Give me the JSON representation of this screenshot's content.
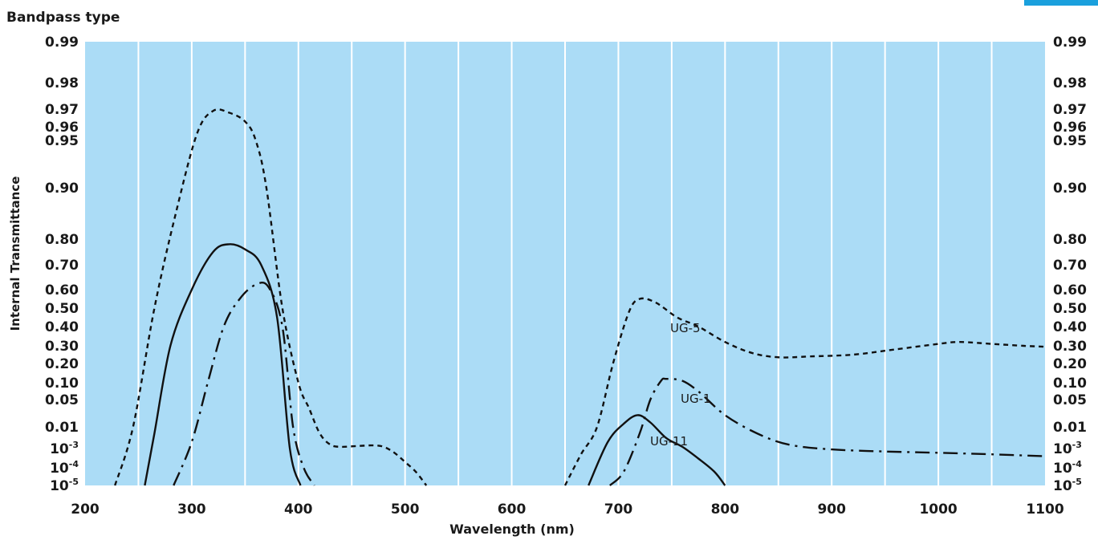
{
  "chart_data": {
    "type": "line",
    "title": "Bandpass type",
    "xlabel": "Wavelength (nm)",
    "ylabel": "Internal Transmittance",
    "xlim": [
      200,
      1100
    ],
    "x_ticks": [
      "200",
      "300",
      "400",
      "500",
      "600",
      "700",
      "800",
      "900",
      "1000",
      "1100"
    ],
    "y_scale": "non-linear (custom transmittance scale)",
    "y_ticks": [
      {
        "value": 0.99,
        "label": "0.99"
      },
      {
        "value": 0.98,
        "label": "0.98"
      },
      {
        "value": 0.97,
        "label": "0.97"
      },
      {
        "value": 0.96,
        "label": "0.96"
      },
      {
        "value": 0.95,
        "label": "0.95"
      },
      {
        "value": 0.9,
        "label": "0.90"
      },
      {
        "value": 0.8,
        "label": "0.80"
      },
      {
        "value": 0.7,
        "label": "0.70"
      },
      {
        "value": 0.6,
        "label": "0.60"
      },
      {
        "value": 0.5,
        "label": "0.50"
      },
      {
        "value": 0.4,
        "label": "0.40"
      },
      {
        "value": 0.3,
        "label": "0.30"
      },
      {
        "value": 0.2,
        "label": "0.20"
      },
      {
        "value": 0.1,
        "label": "0.10"
      },
      {
        "value": 0.05,
        "label": "0.05"
      },
      {
        "value": 0.01,
        "label": "0.01"
      },
      {
        "value": 0.001,
        "base": "10",
        "exp": "-3"
      },
      {
        "value": 0.0001,
        "base": "10",
        "exp": "-4"
      },
      {
        "value": 1e-05,
        "base": "10",
        "exp": "-5"
      }
    ],
    "grid": true,
    "plot_background": "#abdcf6",
    "series": [
      {
        "name": "UG-5",
        "style": "dashed",
        "x": [
          228,
          245,
          265,
          285,
          305,
          320,
          335,
          350,
          360,
          370,
          385,
          400,
          410,
          420,
          430,
          440,
          455,
          470,
          480,
          490,
          500,
          510,
          520,
          650,
          665,
          680,
          695,
          710,
          720,
          735,
          755,
          775,
          800,
          825,
          850,
          880,
          920,
          960,
          1000,
          1020,
          1050,
          1080,
          1100
        ],
        "y": [
          1e-05,
          0.01,
          0.5,
          0.85,
          0.955,
          0.969,
          0.968,
          0.963,
          0.95,
          0.9,
          0.5,
          0.1,
          0.03,
          0.005,
          0.0015,
          0.0012,
          0.0013,
          0.0014,
          0.0012,
          0.0006,
          0.0002,
          6e-05,
          1e-05,
          1e-05,
          0.0005,
          0.01,
          0.2,
          0.48,
          0.55,
          0.53,
          0.45,
          0.4,
          0.32,
          0.26,
          0.235,
          0.24,
          0.25,
          0.28,
          0.31,
          0.32,
          0.31,
          0.3,
          0.295
        ]
      },
      {
        "name": "UG-11",
        "style": "solid",
        "x": [
          256,
          265,
          280,
          300,
          320,
          335,
          350,
          365,
          380,
          392,
          402,
          672,
          690,
          705,
          718,
          730,
          745,
          760,
          775,
          790,
          800
        ],
        "y": [
          1e-05,
          0.005,
          0.3,
          0.6,
          0.75,
          0.78,
          0.76,
          0.7,
          0.45,
          0.001,
          1e-05,
          1e-05,
          0.002,
          0.012,
          0.02,
          0.013,
          0.003,
          0.0012,
          0.0003,
          6e-05,
          1e-05
        ]
      },
      {
        "name": "UG-1",
        "style": "dash-dot",
        "x": [
          283,
          300,
          315,
          330,
          345,
          360,
          372,
          385,
          395,
          405,
          415,
          692,
          705,
          720,
          730,
          740,
          745,
          760,
          775,
          800,
          830,
          860,
          900,
          950,
          1000,
          1050,
          1100
        ],
        "y": [
          1e-05,
          0.002,
          0.1,
          0.4,
          0.55,
          0.62,
          0.61,
          0.4,
          0.01,
          0.0001,
          1e-05,
          1e-05,
          6e-05,
          0.005,
          0.05,
          0.11,
          0.12,
          0.11,
          0.07,
          0.02,
          0.005,
          0.0015,
          0.0009,
          0.0007,
          0.0006,
          0.0005,
          0.0004
        ]
      }
    ]
  }
}
